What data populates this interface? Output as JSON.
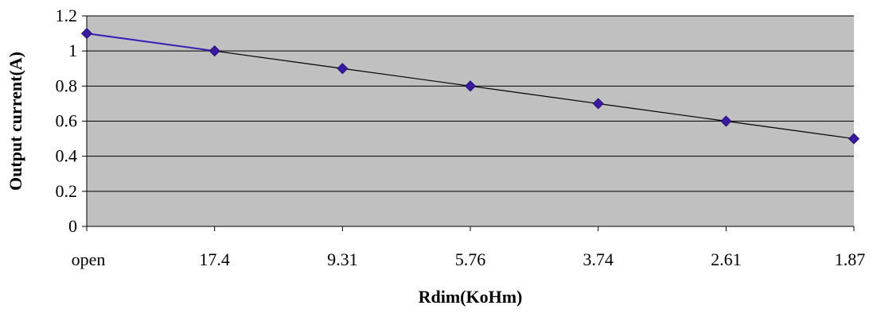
{
  "chart_data": {
    "type": "line",
    "title": "",
    "xlabel": "Rdim(KoHm)",
    "ylabel": "Output current(A)",
    "categories": [
      "open",
      "17.4",
      "9.31",
      "5.76",
      "3.74",
      "2.61",
      "1.87"
    ],
    "series": [
      {
        "values": [
          1.1,
          1.0,
          0.9,
          0.8,
          0.7,
          0.6,
          0.5
        ]
      }
    ],
    "ylim": [
      0,
      1.2
    ],
    "yticks": [
      "0",
      "0.2",
      "0.4",
      "0.6",
      "0.8",
      "1",
      "1.2"
    ],
    "grid": true,
    "legend": "none",
    "colors": {
      "plot_background": "#c0c0c0",
      "gridline": "#000000",
      "line": "#000000",
      "first_segment": "#3a1fb5",
      "marker": "#3a1a9e"
    }
  }
}
